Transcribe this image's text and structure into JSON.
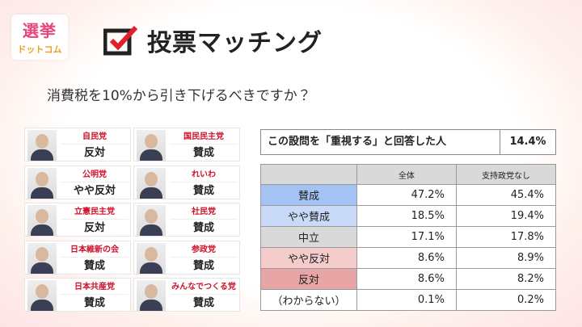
{
  "header": {
    "logo_top": "選挙",
    "logo_bottom": "ドットコム",
    "title": "投票マッチング"
  },
  "question": "消費税を10%から引き下げるべきですか？",
  "parties": [
    {
      "name": "自民党",
      "stance": "反対"
    },
    {
      "name": "国民民主党",
      "stance": "賛成"
    },
    {
      "name": "公明党",
      "stance": "やや反対"
    },
    {
      "name": "れいわ",
      "stance": "賛成"
    },
    {
      "name": "立憲民主党",
      "stance": "反対"
    },
    {
      "name": "社民党",
      "stance": "賛成"
    },
    {
      "name": "日本維新の会",
      "stance": "賛成"
    },
    {
      "name": "参政党",
      "stance": "賛成"
    },
    {
      "name": "日本共産党",
      "stance": "賛成"
    },
    {
      "name": "みんなでつくる党",
      "stance": "賛成"
    }
  ],
  "summary": {
    "label": "この設問を「重視する」と回答した人",
    "value": "14.4%"
  },
  "table": {
    "columns": [
      "全体",
      "支持政党なし"
    ],
    "rows": [
      {
        "label": "賛成",
        "color": "#a4c2f4",
        "values": [
          "47.2%",
          "45.4%"
        ]
      },
      {
        "label": "やや賛成",
        "color": "#c9daf8",
        "values": [
          "18.5%",
          "19.4%"
        ]
      },
      {
        "label": "中立",
        "color": "#d9d9d9",
        "values": [
          "17.1%",
          "17.8%"
        ]
      },
      {
        "label": "やや反対",
        "color": "#f4cccc",
        "values": [
          "8.6%",
          "8.9%"
        ]
      },
      {
        "label": "反対",
        "color": "#e8a5a5",
        "values": [
          "8.6%",
          "8.2%"
        ]
      },
      {
        "label": "（わからない）",
        "color": "#ffffff",
        "values": [
          "0.1%",
          "0.2%"
        ]
      }
    ]
  }
}
